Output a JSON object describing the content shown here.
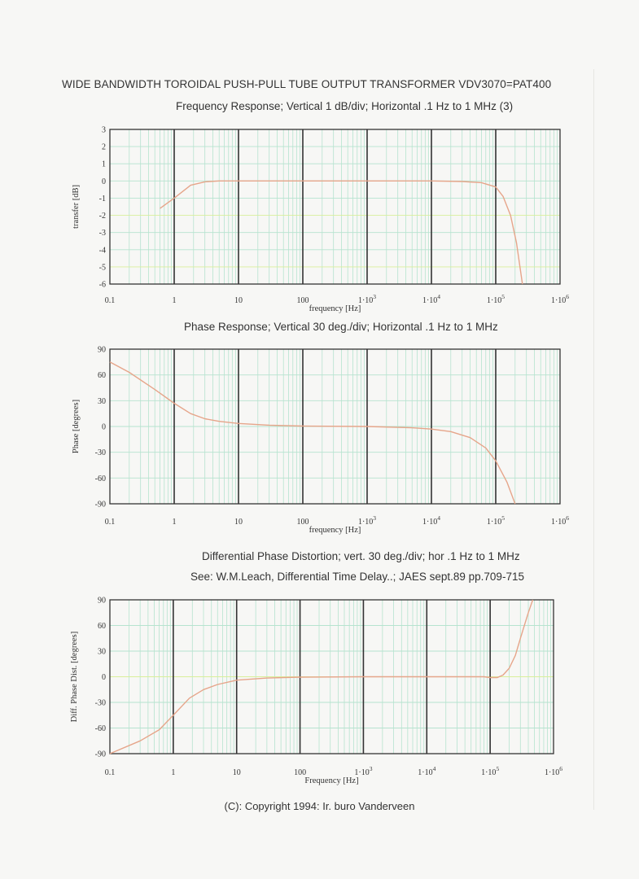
{
  "title": "WIDE BANDWIDTH TOROIDAL PUSH-PULL TUBE OUTPUT TRANSFORMER  VDV3070=PAT400",
  "copyright": "(C): Copyright 1994: Ir. buro Vanderveen",
  "colors": {
    "curve": "#e6a58a",
    "grid_minor": "#b6e3cf",
    "grid_decade": "#333333",
    "grid_highlight": "#d9ef9a",
    "frame": "#333333"
  },
  "chart_data": [
    {
      "type": "line",
      "title": "Frequency Response; Vertical 1 dB/div; Horizontal .1 Hz to 1 MHz   (3)",
      "subtitle": "",
      "xlabel": "frequency [Hz]",
      "ylabel": "transfer [dB]",
      "xscale": "log",
      "xlim": [
        0.1,
        1000000
      ],
      "ylim": [
        -6,
        3
      ],
      "xticks": [
        "0.1",
        "1",
        "10",
        "100",
        "1·10^3",
        "1·10^4",
        "1·10^5",
        "1·10^6"
      ],
      "yticks": [
        "3",
        "2",
        "1",
        "0",
        "-1",
        "-2",
        "-3",
        "-4",
        "-5",
        "-6"
      ],
      "grid": true,
      "series": [
        {
          "x": [
            0.6,
            1,
            1.8,
            3,
            5,
            10,
            100,
            1000,
            10000,
            30000,
            60000,
            100000,
            130000,
            170000,
            210000,
            260000
          ],
          "y": [
            -1.6,
            -1.0,
            -0.25,
            -0.05,
            0,
            0,
            0,
            0,
            0,
            -0.03,
            -0.1,
            -0.35,
            -0.9,
            -2.0,
            -3.6,
            -6.0
          ]
        }
      ]
    },
    {
      "type": "line",
      "title": "Phase Response; Vertical 30 deg./div; Horizontal .1 Hz to 1 MHz",
      "subtitle": "",
      "xlabel": "frequency [Hz]",
      "ylabel": "Phase [degrees]",
      "xscale": "log",
      "xlim": [
        0.1,
        1000000
      ],
      "ylim": [
        -90,
        90
      ],
      "xticks": [
        "0.1",
        "1",
        "10",
        "100",
        "1·10^3",
        "1·10^4",
        "1·10^5",
        "1·10^6"
      ],
      "yticks": [
        "90",
        "60",
        "30",
        "0",
        "-30",
        "-60",
        "-90"
      ],
      "grid": true,
      "series": [
        {
          "x": [
            0.1,
            0.2,
            0.5,
            1,
            1.8,
            3,
            5,
            10,
            30,
            100,
            1000,
            5000,
            10000,
            20000,
            40000,
            70000,
            100000,
            150000,
            200000
          ],
          "y": [
            75,
            63,
            43,
            27,
            15,
            9,
            6,
            3.5,
            1.5,
            0.5,
            0,
            -1.5,
            -3,
            -6,
            -13,
            -25,
            -40,
            -65,
            -90
          ]
        }
      ]
    },
    {
      "type": "line",
      "title": "Differential Phase Distortion; vert. 30 deg./div; hor .1 Hz to 1 MHz",
      "subtitle": "See: W.M.Leach, Differential Time Delay..; JAES sept.89 pp.709-715",
      "xlabel": "Frequency [Hz]",
      "ylabel": "Diff. Phase Dist. [degrees]",
      "xscale": "log",
      "xlim": [
        0.1,
        1000000
      ],
      "ylim": [
        -90,
        90
      ],
      "xticks": [
        "0.1",
        "1",
        "10",
        "100",
        "1·10^3",
        "1·10^4",
        "1·10^5",
        "1·10^6"
      ],
      "yticks": [
        "90",
        "60",
        "30",
        "0",
        "-30",
        "-60",
        "-90"
      ],
      "grid": true,
      "series": [
        {
          "x": [
            0.1,
            0.3,
            0.6,
            1,
            1.8,
            3,
            5,
            10,
            30,
            100,
            1000,
            10000,
            80000,
            100000,
            130000,
            160000,
            200000,
            250000,
            300000,
            400000,
            470000
          ],
          "y": [
            -90,
            -75,
            -62,
            -45,
            -25,
            -15,
            -9,
            -4,
            -1.5,
            -0.5,
            0,
            0,
            0,
            -1,
            -1,
            2,
            10,
            25,
            45,
            75,
            90
          ]
        }
      ]
    }
  ]
}
